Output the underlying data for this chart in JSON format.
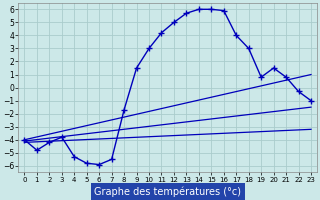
{
  "xlabel": "Graphe des températures (°c)",
  "bg_color": "#cce8e8",
  "line_color": "#0000bb",
  "grid_color": "#aacccc",
  "xlim": [
    -0.5,
    23.5
  ],
  "ylim": [
    -6.5,
    6.5
  ],
  "yticks": [
    -6,
    -5,
    -4,
    -3,
    -2,
    -1,
    0,
    1,
    2,
    3,
    4,
    5,
    6
  ],
  "xticks": [
    0,
    1,
    2,
    3,
    4,
    5,
    6,
    7,
    8,
    9,
    10,
    11,
    12,
    13,
    14,
    15,
    16,
    17,
    18,
    19,
    20,
    21,
    22,
    23
  ],
  "curve_x": [
    0,
    1,
    2,
    3,
    4,
    5,
    6,
    7,
    8,
    9,
    10,
    11,
    12,
    13,
    14,
    15,
    16,
    17,
    18,
    19,
    20,
    21,
    22,
    23
  ],
  "curve_y": [
    -4.0,
    -4.8,
    -4.2,
    -3.8,
    -5.3,
    -5.8,
    -5.9,
    -5.5,
    -1.7,
    1.5,
    3.0,
    4.2,
    5.0,
    5.7,
    6.0,
    6.0,
    5.9,
    4.0,
    3.0,
    0.8,
    1.5,
    0.8,
    -0.3,
    -1.0
  ],
  "line1_x": [
    0,
    23
  ],
  "line1_y": [
    -4.0,
    1.0
  ],
  "line2_x": [
    0,
    23
  ],
  "line2_y": [
    -4.1,
    -1.5
  ],
  "line3_x": [
    0,
    23
  ],
  "line3_y": [
    -4.2,
    -3.2
  ],
  "xlabel_bg": "#2244aa",
  "xlabel_fg": "white",
  "xlabel_fontsize": 7.0,
  "tick_fontsize": 5.0,
  "ytick_fontsize": 5.5
}
